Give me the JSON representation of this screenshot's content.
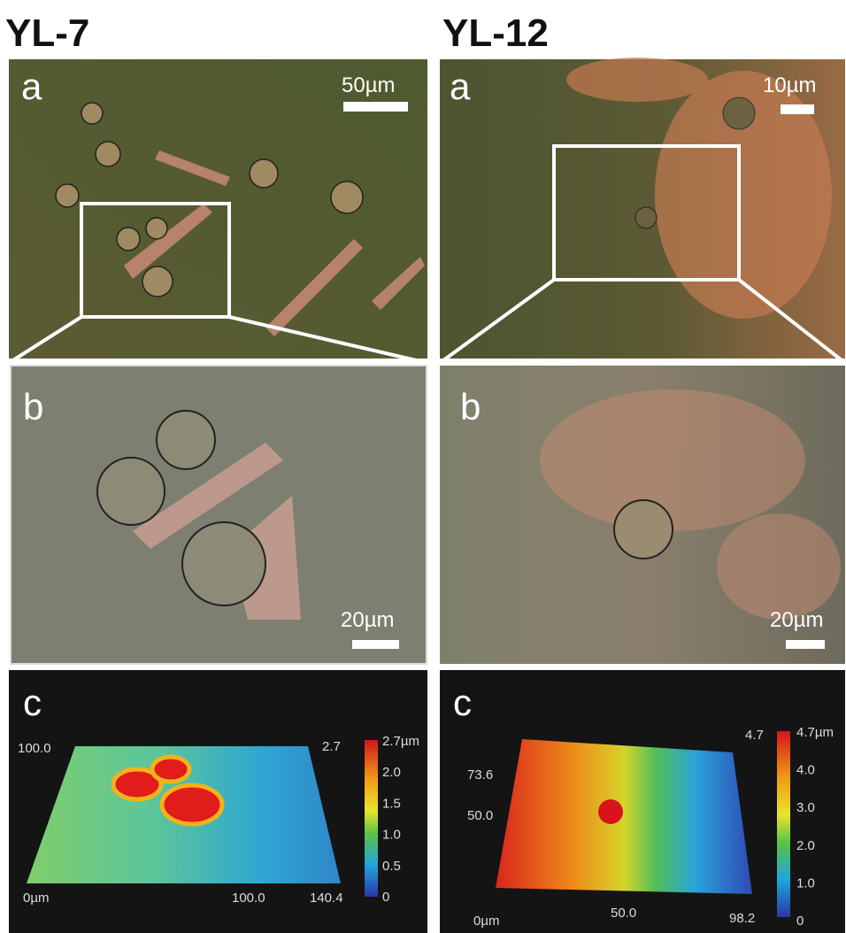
{
  "left": {
    "title": "YL-7",
    "panel_a": {
      "label": "a",
      "scale": "50µm"
    },
    "panel_b": {
      "label": "b",
      "scale": "20µm"
    },
    "panel_c": {
      "label": "c",
      "y_axis": "100.0",
      "z_max": "2.7",
      "x_axis": [
        "0µm",
        "100.0",
        "140.4"
      ],
      "colorbar": [
        "2.7µm",
        "2.0",
        "1.5",
        "1.0",
        "0.5",
        "0"
      ]
    }
  },
  "right": {
    "title": "YL-12",
    "panel_a": {
      "label": "a",
      "scale": "10µm"
    },
    "panel_b": {
      "label": "b",
      "scale": "20µm"
    },
    "panel_c": {
      "label": "c",
      "y_axis": [
        "73.6",
        "50.0"
      ],
      "z_max": "4.7",
      "x_axis": [
        "0µm",
        "50.0",
        "98.2"
      ],
      "colorbar": [
        "4.7µm",
        "4.0",
        "3.0",
        "2.0",
        "1.0",
        "0"
      ]
    }
  }
}
